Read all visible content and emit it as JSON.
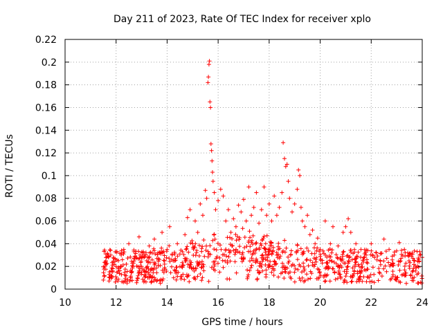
{
  "chart_data": {
    "type": "scatter",
    "title": "Day 211 of 2023, Rate Of TEC Index for receiver xplo",
    "xlabel": "GPS time / hours",
    "ylabel": "ROTI / TECUs",
    "xlim": [
      10,
      24
    ],
    "ylim": [
      0,
      0.22
    ],
    "xticks": [
      10,
      12,
      14,
      16,
      18,
      20,
      22,
      24
    ],
    "yticks": [
      0,
      0.02,
      0.04,
      0.06,
      0.08,
      0.1,
      0.12,
      0.14,
      0.16,
      0.18,
      0.2,
      0.22
    ],
    "xtick_labels": [
      "10",
      "12",
      "14",
      "16",
      "18",
      "20",
      "22",
      "24"
    ],
    "ytick_labels": [
      "0",
      "0.02",
      "0.04",
      "0.06",
      "0.08",
      "0.1",
      "0.12",
      "0.14",
      "0.16",
      "0.18",
      "0.2",
      "0.22"
    ],
    "grid": true,
    "marker": "+",
    "color": "#ff0000",
    "x_range_of_data": [
      11.5,
      24
    ],
    "series": [
      {
        "name": "ROTI",
        "points": [
          [
            11.5,
            0.008
          ],
          [
            11.6,
            0.025
          ],
          [
            11.7,
            0.03
          ],
          [
            11.8,
            0.012
          ],
          [
            11.9,
            0.028
          ],
          [
            12.0,
            0.02
          ],
          [
            12.1,
            0.018
          ],
          [
            12.2,
            0.03
          ],
          [
            12.3,
            0.035
          ],
          [
            12.4,
            0.022
          ],
          [
            12.5,
            0.04
          ],
          [
            12.6,
            0.015
          ],
          [
            12.7,
            0.033
          ],
          [
            12.8,
            0.028
          ],
          [
            12.9,
            0.046
          ],
          [
            13.0,
            0.02
          ],
          [
            13.1,
            0.03
          ],
          [
            13.2,
            0.025
          ],
          [
            13.3,
            0.038
          ],
          [
            13.4,
            0.018
          ],
          [
            13.5,
            0.044
          ],
          [
            13.6,
            0.027
          ],
          [
            13.7,
            0.032
          ],
          [
            13.8,
            0.05
          ],
          [
            13.9,
            0.022
          ],
          [
            14.0,
            0.035
          ],
          [
            14.1,
            0.055
          ],
          [
            14.2,
            0.03
          ],
          [
            14.3,
            0.025
          ],
          [
            14.4,
            0.04
          ],
          [
            14.5,
            0.02
          ],
          [
            14.6,
            0.033
          ],
          [
            14.7,
            0.048
          ],
          [
            14.8,
            0.063
          ],
          [
            14.9,
            0.07
          ],
          [
            15.0,
            0.04
          ],
          [
            15.1,
            0.06
          ],
          [
            15.2,
            0.05
          ],
          [
            15.3,
            0.075
          ],
          [
            15.4,
            0.065
          ],
          [
            15.5,
            0.087
          ],
          [
            15.55,
            0.08
          ],
          [
            15.6,
            0.182
          ],
          [
            15.62,
            0.187
          ],
          [
            15.64,
            0.198
          ],
          [
            15.66,
            0.201
          ],
          [
            15.68,
            0.165
          ],
          [
            15.7,
            0.16
          ],
          [
            15.72,
            0.128
          ],
          [
            15.74,
            0.122
          ],
          [
            15.76,
            0.113
          ],
          [
            15.78,
            0.103
          ],
          [
            15.8,
            0.095
          ],
          [
            15.85,
            0.085
          ],
          [
            15.9,
            0.07
          ],
          [
            16.0,
            0.078
          ],
          [
            16.1,
            0.088
          ],
          [
            16.2,
            0.082
          ],
          [
            16.3,
            0.06
          ],
          [
            16.4,
            0.07
          ],
          [
            16.5,
            0.05
          ],
          [
            16.6,
            0.062
          ],
          [
            16.7,
            0.055
          ],
          [
            16.8,
            0.074
          ],
          [
            16.9,
            0.068
          ],
          [
            17.0,
            0.079
          ],
          [
            17.1,
            0.06
          ],
          [
            17.2,
            0.09
          ],
          [
            17.3,
            0.065
          ],
          [
            17.4,
            0.072
          ],
          [
            17.5,
            0.085
          ],
          [
            17.6,
            0.058
          ],
          [
            17.7,
            0.07
          ],
          [
            17.8,
            0.09
          ],
          [
            17.9,
            0.065
          ],
          [
            18.0,
            0.075
          ],
          [
            18.1,
            0.06
          ],
          [
            18.2,
            0.082
          ],
          [
            18.3,
            0.065
          ],
          [
            18.4,
            0.072
          ],
          [
            18.5,
            0.085
          ],
          [
            18.55,
            0.129
          ],
          [
            18.6,
            0.115
          ],
          [
            18.65,
            0.108
          ],
          [
            18.7,
            0.11
          ],
          [
            18.75,
            0.095
          ],
          [
            18.8,
            0.08
          ],
          [
            18.9,
            0.068
          ],
          [
            19.0,
            0.075
          ],
          [
            19.1,
            0.088
          ],
          [
            19.15,
            0.105
          ],
          [
            19.2,
            0.1
          ],
          [
            19.25,
            0.072
          ],
          [
            19.3,
            0.06
          ],
          [
            19.4,
            0.055
          ],
          [
            19.5,
            0.065
          ],
          [
            19.6,
            0.048
          ],
          [
            19.7,
            0.052
          ],
          [
            19.8,
            0.04
          ],
          [
            19.9,
            0.045
          ],
          [
            20.0,
            0.035
          ],
          [
            20.2,
            0.06
          ],
          [
            20.4,
            0.04
          ],
          [
            20.5,
            0.055
          ],
          [
            20.7,
            0.038
          ],
          [
            20.9,
            0.05
          ],
          [
            21.0,
            0.055
          ],
          [
            21.1,
            0.062
          ],
          [
            21.2,
            0.05
          ],
          [
            21.4,
            0.04
          ],
          [
            21.6,
            0.035
          ],
          [
            21.8,
            0.03
          ],
          [
            22.0,
            0.04
          ],
          [
            22.2,
            0.032
          ],
          [
            22.5,
            0.044
          ],
          [
            22.7,
            0.035
          ],
          [
            22.9,
            0.03
          ],
          [
            23.1,
            0.041
          ],
          [
            23.3,
            0.035
          ],
          [
            23.5,
            0.03
          ],
          [
            23.7,
            0.025
          ],
          [
            23.9,
            0.03
          ],
          [
            24.0,
            0.028
          ]
        ],
        "baseline_band": [
          0.005,
          0.035
        ]
      }
    ]
  }
}
